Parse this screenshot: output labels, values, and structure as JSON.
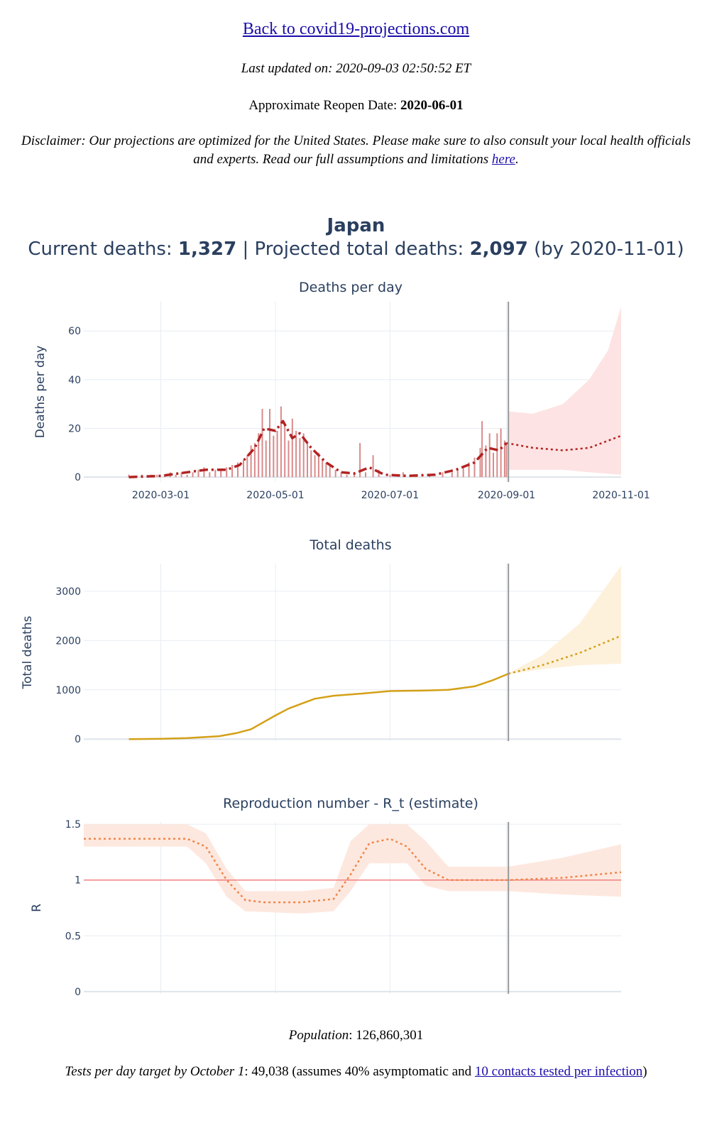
{
  "header": {
    "back_link": "Back to covid19-projections.com",
    "last_updated": "Last updated on: 2020-09-03 02:50:52 ET",
    "reopen_label": "Approximate Reopen Date:",
    "reopen_date": "2020-06-01",
    "disclaimer_text": "Disclaimer: Our projections are optimized for the United States. Please make sure to also consult your local health officials and experts. Read our full assumptions and limitations",
    "disclaimer_link": "here",
    "disclaimer_end": "."
  },
  "summary": {
    "country": "Japan",
    "current_label": "Current deaths:",
    "current_value": "1,327",
    "separator": "|",
    "projected_label": "Projected total deaths:",
    "projected_value": "2,097",
    "projected_suffix": "(by 2020-11-01)"
  },
  "footer": {
    "population_label": "Population",
    "population_value": ": 126,860,301",
    "tests_label": "Tests per day target by October 1",
    "tests_value": ": 49,038 (assumes 40% asymptomatic and",
    "tests_link": "10 contacts tested per infection",
    "tests_end": ")"
  },
  "colors": {
    "deaths_bar": "#d98a8a",
    "deaths_line": "#b22222",
    "deaths_band": "#fde3e3",
    "total_line": "#d4a017",
    "total_band": "#fdf1dc",
    "r_line": "#f0864a",
    "r_band": "#fde8df",
    "r_ref": "#f08080",
    "divider": "#999999",
    "grid": "#e8ecf2",
    "text": "#2a3f5f"
  },
  "chart_data": [
    {
      "type": "bar",
      "title": "Deaths per day",
      "ylabel": "Deaths per day",
      "xlabel": "",
      "x_ticks": [
        "2020-03-01",
        "2020-05-01",
        "2020-07-01",
        "2020-09-01",
        "2020-11-01"
      ],
      "y_ticks": [
        "0",
        "20",
        "40",
        "60"
      ],
      "xlim": [
        "2020-01-20",
        "2020-11-01"
      ],
      "ylim": [
        -2,
        72
      ],
      "today": "2020-09-02",
      "grid": true,
      "bars": [
        [
          "2020-02-13",
          1
        ],
        [
          "2020-02-20",
          1
        ],
        [
          "2020-02-25",
          1
        ],
        [
          "2020-02-28",
          1
        ],
        [
          "2020-03-03",
          1
        ],
        [
          "2020-03-06",
          2
        ],
        [
          "2020-03-09",
          1
        ],
        [
          "2020-03-12",
          2
        ],
        [
          "2020-03-15",
          1
        ],
        [
          "2020-03-18",
          2
        ],
        [
          "2020-03-21",
          3
        ],
        [
          "2020-03-24",
          4
        ],
        [
          "2020-03-27",
          2
        ],
        [
          "2020-03-30",
          3
        ],
        [
          "2020-04-02",
          3
        ],
        [
          "2020-04-05",
          4
        ],
        [
          "2020-04-08",
          5
        ],
        [
          "2020-04-11",
          6
        ],
        [
          "2020-04-14",
          7
        ],
        [
          "2020-04-16",
          9
        ],
        [
          "2020-04-18",
          13
        ],
        [
          "2020-04-20",
          14
        ],
        [
          "2020-04-22",
          18
        ],
        [
          "2020-04-24",
          28
        ],
        [
          "2020-04-26",
          15
        ],
        [
          "2020-04-28",
          28
        ],
        [
          "2020-04-30",
          17
        ],
        [
          "2020-05-02",
          19
        ],
        [
          "2020-05-04",
          29
        ],
        [
          "2020-05-06",
          22
        ],
        [
          "2020-05-08",
          15
        ],
        [
          "2020-05-10",
          24
        ],
        [
          "2020-05-12",
          19
        ],
        [
          "2020-05-14",
          16
        ],
        [
          "2020-05-16",
          18
        ],
        [
          "2020-05-18",
          14
        ],
        [
          "2020-05-20",
          11
        ],
        [
          "2020-05-22",
          9
        ],
        [
          "2020-05-24",
          10
        ],
        [
          "2020-05-26",
          7
        ],
        [
          "2020-05-28",
          6
        ],
        [
          "2020-05-30",
          5
        ],
        [
          "2020-06-02",
          3
        ],
        [
          "2020-06-05",
          2
        ],
        [
          "2020-06-08",
          1
        ],
        [
          "2020-06-12",
          2
        ],
        [
          "2020-06-15",
          14
        ],
        [
          "2020-06-18",
          2
        ],
        [
          "2020-06-22",
          9
        ],
        [
          "2020-06-25",
          3
        ],
        [
          "2020-07-01",
          1
        ],
        [
          "2020-07-08",
          2
        ],
        [
          "2020-07-15",
          1
        ],
        [
          "2020-07-22",
          1
        ],
        [
          "2020-07-29",
          2
        ],
        [
          "2020-08-03",
          2
        ],
        [
          "2020-08-06",
          3
        ],
        [
          "2020-08-09",
          4
        ],
        [
          "2020-08-12",
          6
        ],
        [
          "2020-08-15",
          8
        ],
        [
          "2020-08-18",
          12
        ],
        [
          "2020-08-19",
          23
        ],
        [
          "2020-08-21",
          13
        ],
        [
          "2020-08-23",
          18
        ],
        [
          "2020-08-25",
          10
        ],
        [
          "2020-08-27",
          18
        ],
        [
          "2020-08-29",
          20
        ],
        [
          "2020-08-31",
          15
        ],
        [
          "2020-09-01",
          14
        ]
      ],
      "observed_avg": [
        [
          "2020-02-13",
          0
        ],
        [
          "2020-03-01",
          0.5
        ],
        [
          "2020-03-15",
          2
        ],
        [
          "2020-03-25",
          3
        ],
        [
          "2020-04-05",
          3
        ],
        [
          "2020-04-12",
          5
        ],
        [
          "2020-04-20",
          12
        ],
        [
          "2020-04-25",
          20
        ],
        [
          "2020-05-01",
          19
        ],
        [
          "2020-05-05",
          23
        ],
        [
          "2020-05-10",
          16
        ],
        [
          "2020-05-14",
          18
        ],
        [
          "2020-05-20",
          12
        ],
        [
          "2020-05-28",
          6
        ],
        [
          "2020-06-05",
          2
        ],
        [
          "2020-06-12",
          1.5
        ],
        [
          "2020-06-20",
          4
        ],
        [
          "2020-06-28",
          1
        ],
        [
          "2020-07-10",
          0.5
        ],
        [
          "2020-07-25",
          1
        ],
        [
          "2020-08-05",
          3
        ],
        [
          "2020-08-15",
          6
        ],
        [
          "2020-08-22",
          12
        ],
        [
          "2020-08-28",
          11
        ],
        [
          "2020-09-01",
          14
        ]
      ],
      "projection": [
        [
          "2020-09-01",
          14
        ],
        [
          "2020-09-15",
          12
        ],
        [
          "2020-10-01",
          11
        ],
        [
          "2020-10-15",
          12
        ],
        [
          "2020-11-01",
          17
        ]
      ],
      "projection_upper": [
        [
          "2020-09-02",
          27
        ],
        [
          "2020-09-15",
          26
        ],
        [
          "2020-10-01",
          30
        ],
        [
          "2020-10-15",
          40
        ],
        [
          "2020-10-25",
          52
        ],
        [
          "2020-11-01",
          70
        ]
      ],
      "projection_lower": [
        [
          "2020-09-02",
          3
        ],
        [
          "2020-09-15",
          3
        ],
        [
          "2020-10-01",
          3
        ],
        [
          "2020-10-15",
          2
        ],
        [
          "2020-11-01",
          1
        ]
      ]
    },
    {
      "type": "line",
      "title": "Total deaths",
      "ylabel": "Total deaths",
      "xlabel": "",
      "y_ticks": [
        "0",
        "1000",
        "2000",
        "3000"
      ],
      "xlim": [
        "2020-01-20",
        "2020-11-01"
      ],
      "ylim": [
        -40,
        3560
      ],
      "today": "2020-09-02",
      "grid": true,
      "observed": [
        [
          "2020-02-13",
          1
        ],
        [
          "2020-03-01",
          6
        ],
        [
          "2020-03-15",
          22
        ],
        [
          "2020-04-01",
          60
        ],
        [
          "2020-04-10",
          120
        ],
        [
          "2020-04-18",
          200
        ],
        [
          "2020-04-25",
          350
        ],
        [
          "2020-05-01",
          480
        ],
        [
          "2020-05-08",
          620
        ],
        [
          "2020-05-15",
          720
        ],
        [
          "2020-05-22",
          820
        ],
        [
          "2020-06-01",
          880
        ],
        [
          "2020-06-15",
          920
        ],
        [
          "2020-07-01",
          975
        ],
        [
          "2020-07-20",
          985
        ],
        [
          "2020-08-01",
          1000
        ],
        [
          "2020-08-15",
          1070
        ],
        [
          "2020-08-25",
          1200
        ],
        [
          "2020-09-02",
          1327
        ]
      ],
      "projection": [
        [
          "2020-09-02",
          1327
        ],
        [
          "2020-09-20",
          1500
        ],
        [
          "2020-10-10",
          1750
        ],
        [
          "2020-11-01",
          2097
        ]
      ],
      "projection_upper": [
        [
          "2020-09-02",
          1340
        ],
        [
          "2020-09-20",
          1700
        ],
        [
          "2020-10-10",
          2350
        ],
        [
          "2020-11-01",
          3520
        ]
      ],
      "projection_lower": [
        [
          "2020-09-02",
          1320
        ],
        [
          "2020-09-20",
          1420
        ],
        [
          "2020-10-10",
          1500
        ],
        [
          "2020-11-01",
          1530
        ]
      ]
    },
    {
      "type": "line",
      "title": "Reproduction number - R_t (estimate)",
      "ylabel": "R",
      "xlabel": "",
      "y_ticks": [
        "0",
        "0.5",
        "1",
        "1.5"
      ],
      "xlim": [
        "2020-01-20",
        "2020-11-01"
      ],
      "ylim": [
        -0.02,
        1.52
      ],
      "today": "2020-09-02",
      "reference": 1,
      "grid": true,
      "estimate": [
        [
          "2020-01-20",
          1.37
        ],
        [
          "2020-03-15",
          1.37
        ],
        [
          "2020-03-25",
          1.3
        ],
        [
          "2020-04-05",
          1.0
        ],
        [
          "2020-04-15",
          0.82
        ],
        [
          "2020-04-25",
          0.8
        ],
        [
          "2020-05-15",
          0.8
        ],
        [
          "2020-06-01",
          0.83
        ],
        [
          "2020-06-10",
          1.05
        ],
        [
          "2020-06-20",
          1.33
        ],
        [
          "2020-07-01",
          1.37
        ],
        [
          "2020-07-10",
          1.3
        ],
        [
          "2020-07-20",
          1.1
        ],
        [
          "2020-08-01",
          1.0
        ],
        [
          "2020-08-15",
          1.0
        ],
        [
          "2020-09-02",
          1.0
        ],
        [
          "2020-10-01",
          1.02
        ],
        [
          "2020-11-01",
          1.07
        ]
      ],
      "upper": [
        [
          "2020-01-20",
          1.5
        ],
        [
          "2020-03-15",
          1.5
        ],
        [
          "2020-03-25",
          1.42
        ],
        [
          "2020-04-05",
          1.1
        ],
        [
          "2020-04-15",
          0.9
        ],
        [
          "2020-05-15",
          0.9
        ],
        [
          "2020-06-01",
          0.93
        ],
        [
          "2020-06-10",
          1.35
        ],
        [
          "2020-06-20",
          1.5
        ],
        [
          "2020-07-10",
          1.5
        ],
        [
          "2020-07-20",
          1.35
        ],
        [
          "2020-08-01",
          1.12
        ],
        [
          "2020-09-02",
          1.12
        ],
        [
          "2020-10-01",
          1.2
        ],
        [
          "2020-11-01",
          1.32
        ]
      ],
      "lower": [
        [
          "2020-01-20",
          1.3
        ],
        [
          "2020-03-15",
          1.3
        ],
        [
          "2020-03-25",
          1.15
        ],
        [
          "2020-04-05",
          0.85
        ],
        [
          "2020-04-15",
          0.72
        ],
        [
          "2020-05-15",
          0.7
        ],
        [
          "2020-06-01",
          0.72
        ],
        [
          "2020-06-10",
          0.9
        ],
        [
          "2020-06-20",
          1.15
        ],
        [
          "2020-07-10",
          1.15
        ],
        [
          "2020-07-20",
          0.95
        ],
        [
          "2020-08-01",
          0.9
        ],
        [
          "2020-09-02",
          0.9
        ],
        [
          "2020-10-01",
          0.87
        ],
        [
          "2020-11-01",
          0.85
        ]
      ]
    }
  ]
}
